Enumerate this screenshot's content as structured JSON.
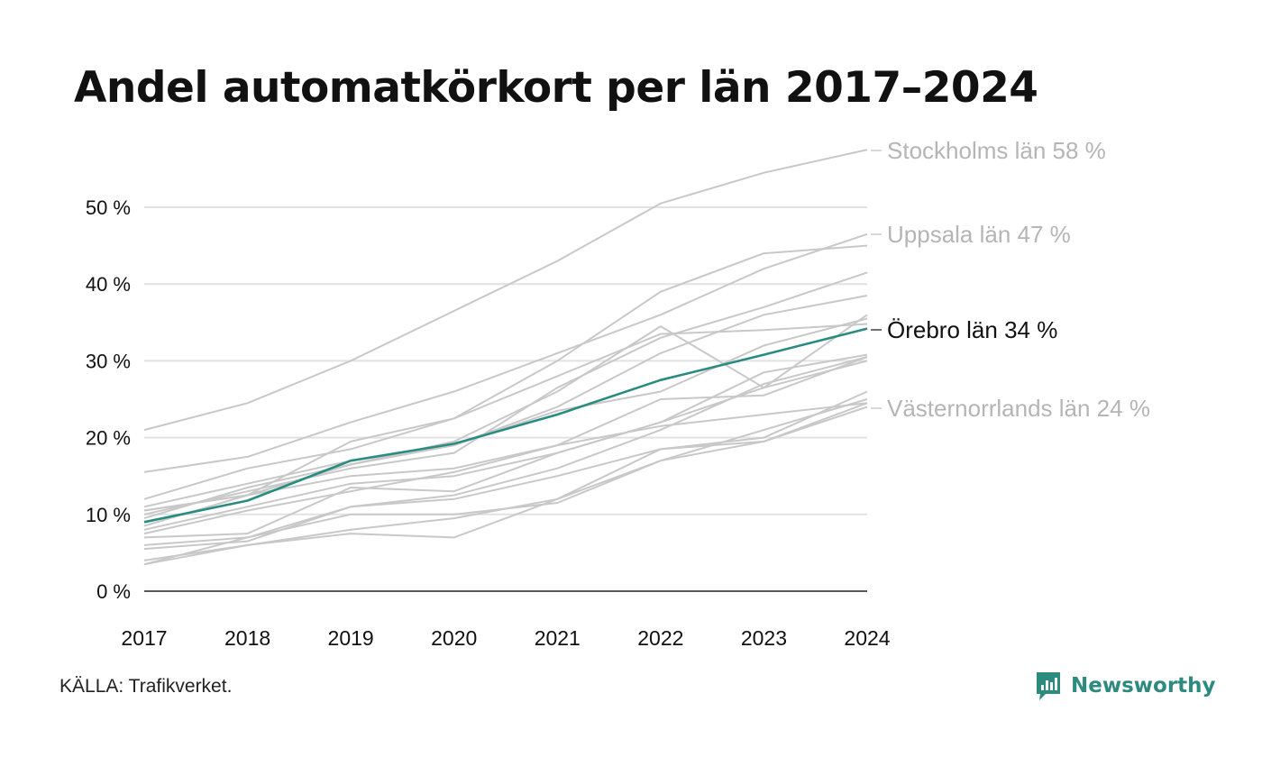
{
  "chart_data": {
    "type": "line",
    "title": "Andel automatkörkort per län 2017–2024",
    "x": [
      "2017",
      "2018",
      "2019",
      "2020",
      "2021",
      "2022",
      "2023",
      "2024"
    ],
    "y_ticks": [
      "0 %",
      "10 %",
      "20 %",
      "30 %",
      "40 %",
      "50 %"
    ],
    "ylim": [
      0,
      60
    ],
    "grid": true,
    "highlight_color": "#2a8c80",
    "background_color": "#c8c8c8",
    "series": [
      {
        "name": "Stockholms län 58 %",
        "values": [
          21,
          24.5,
          30,
          36.5,
          43,
          50.5,
          54.5,
          57.5
        ],
        "label_visible": true,
        "highlight": false
      },
      {
        "name": "Uppsala län 47 %",
        "values": [
          15.5,
          17.5,
          22,
          26,
          31,
          36,
          42,
          46.5
        ],
        "label_visible": true,
        "highlight": false
      },
      {
        "name": "Örebro län 34 %",
        "values": [
          9,
          11.8,
          17,
          19.2,
          23,
          27.5,
          30.8,
          34.2
        ],
        "label_visible": true,
        "highlight": true
      },
      {
        "name": "Västernorrlands län 24 %",
        "values": [
          10.5,
          12.5,
          15,
          16,
          19,
          21.5,
          23,
          24.5
        ],
        "label_visible": true,
        "highlight": false
      },
      {
        "values": [
          12,
          16,
          18.5,
          22.5,
          30,
          39,
          44,
          45
        ],
        "label_visible": false,
        "highlight": false
      },
      {
        "values": [
          10,
          13,
          16,
          18,
          26.5,
          33,
          37,
          41.5
        ],
        "label_visible": false,
        "highlight": false
      },
      {
        "values": [
          11,
          14,
          17,
          19,
          24,
          31,
          36,
          38.5
        ],
        "label_visible": false,
        "highlight": false
      },
      {
        "values": [
          10.5,
          12.5,
          16.5,
          19.5,
          26,
          34.5,
          26.5,
          36
        ],
        "label_visible": false,
        "highlight": false
      },
      {
        "values": [
          8.5,
          12.5,
          19.5,
          22.5,
          28,
          33.5,
          34,
          34.8
        ],
        "label_visible": false,
        "highlight": false
      },
      {
        "values": [
          9.5,
          13.5,
          16.5,
          19,
          23.5,
          26,
          32,
          35.5
        ],
        "label_visible": false,
        "highlight": false
      },
      {
        "values": [
          7.5,
          10.5,
          13,
          15.5,
          19,
          25,
          25.5,
          30.5
        ],
        "label_visible": false,
        "highlight": false
      },
      {
        "values": [
          8,
          11,
          14,
          15,
          18,
          22,
          26.5,
          30
        ],
        "label_visible": false,
        "highlight": false
      },
      {
        "values": [
          7,
          7.5,
          13.5,
          13,
          18,
          22,
          28.5,
          30.8
        ],
        "label_visible": false,
        "highlight": false
      },
      {
        "values": [
          6,
          7,
          11,
          12.5,
          16,
          21,
          27,
          30.5
        ],
        "label_visible": false,
        "highlight": false
      },
      {
        "values": [
          5.5,
          6.5,
          11,
          12,
          15,
          18.5,
          20,
          26
        ],
        "label_visible": false,
        "highlight": false
      },
      {
        "values": [
          4,
          6,
          8,
          9.5,
          12,
          18.5,
          19.5,
          24.5
        ],
        "label_visible": false,
        "highlight": false
      },
      {
        "values": [
          3.5,
          6,
          7.5,
          7,
          12,
          17,
          19.5,
          24
        ],
        "label_visible": false,
        "highlight": false
      },
      {
        "values": [
          3.5,
          7,
          10,
          10,
          11.5,
          17,
          21,
          25
        ]
      }
    ]
  },
  "footer": {
    "source": "KÄLLA: Trafikverket."
  },
  "brand": {
    "name": "Newsworthy",
    "icon": "newsworthy-logo-icon",
    "color": "#2d8a7e"
  }
}
